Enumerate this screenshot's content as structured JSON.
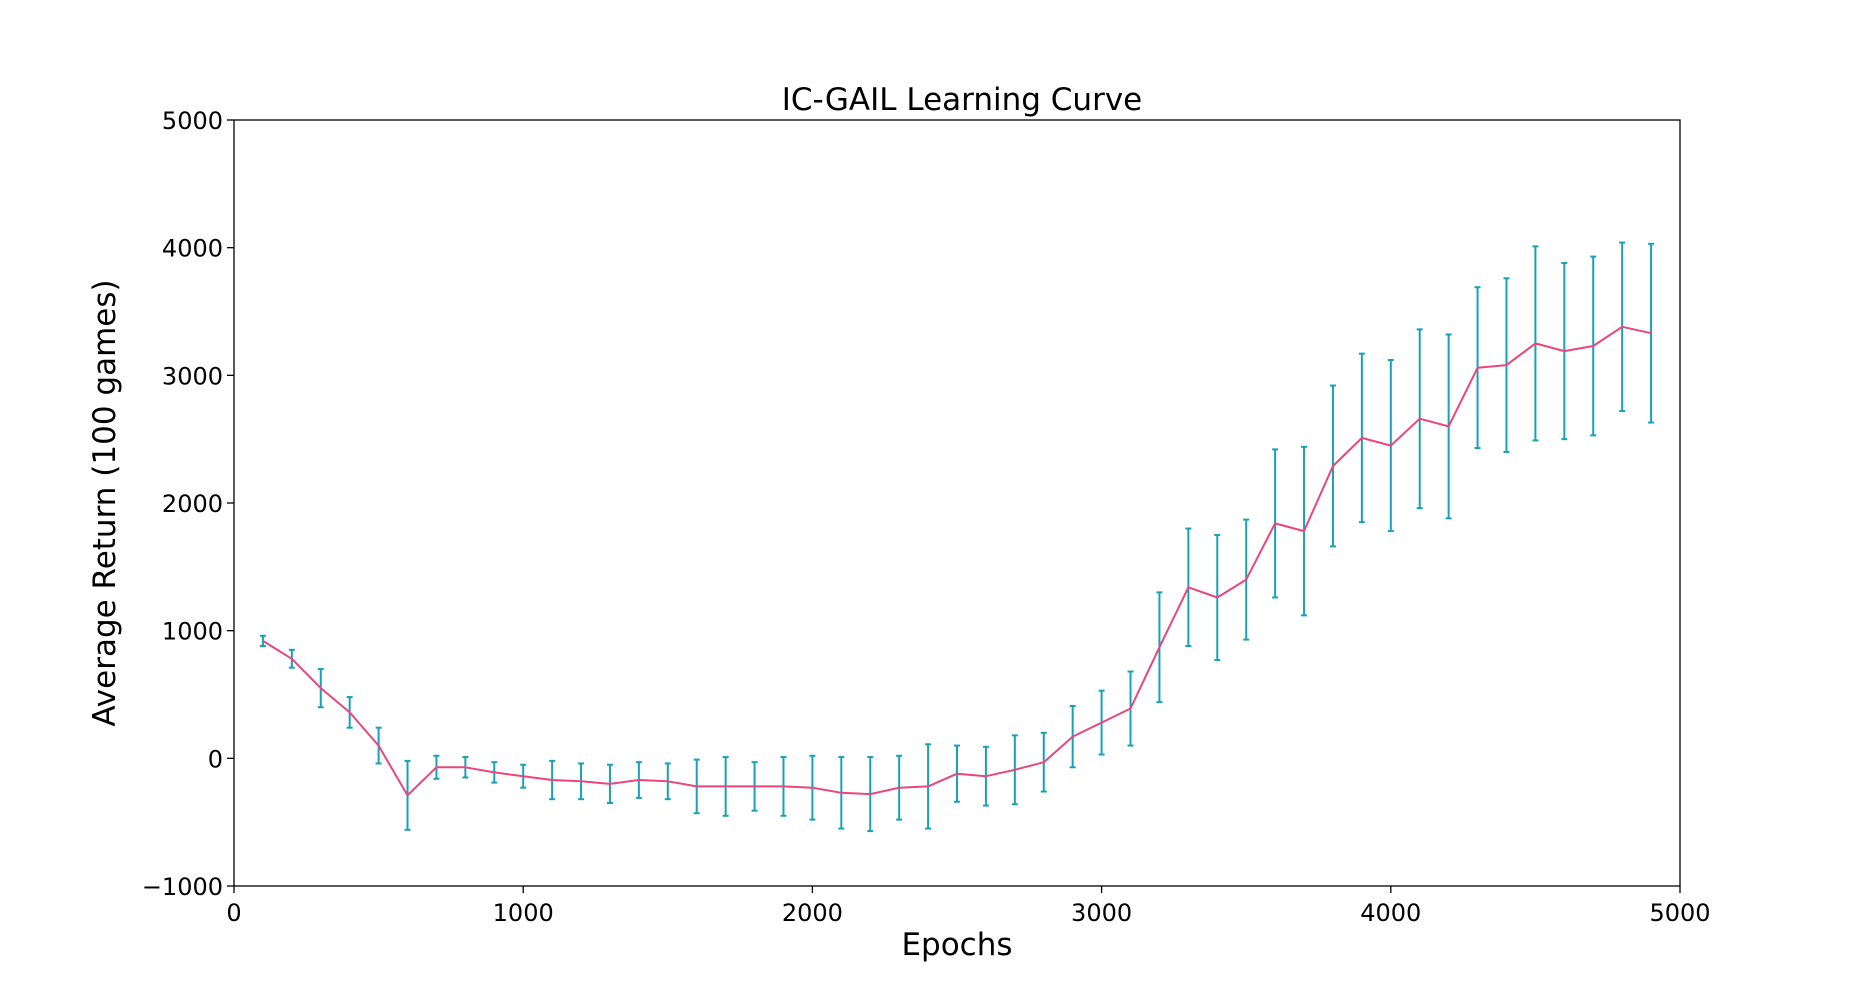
{
  "chart_data": {
    "type": "line",
    "title": "IC-GAIL Learning Curve",
    "xlabel": "Epochs",
    "ylabel": "Average Return (100 games)",
    "xlim": [
      0,
      5000
    ],
    "ylim": [
      -1000,
      5000
    ],
    "xticks": [
      0,
      1000,
      2000,
      3000,
      4000,
      5000
    ],
    "xtick_labels": [
      "0",
      "1000",
      "2000",
      "3000",
      "4000",
      "5000"
    ],
    "yticks": [
      -1000,
      0,
      1000,
      2000,
      3000,
      4000,
      5000
    ],
    "ytick_labels": [
      "−1000",
      "0",
      "1000",
      "2000",
      "3000",
      "4000",
      "5000"
    ],
    "grid": false,
    "line_color": "#e8467c",
    "errorbar_color": "#17a2b8",
    "series": [
      {
        "x": [
          100,
          200,
          300,
          400,
          500,
          600,
          700,
          800,
          900,
          1000,
          1100,
          1200,
          1300,
          1400,
          1500,
          1600,
          1700,
          1800,
          1900,
          2000,
          2100,
          2200,
          2300,
          2400,
          2500,
          2600,
          2700,
          2800,
          2900,
          3000,
          3100,
          3200,
          3300,
          3400,
          3500,
          3600,
          3700,
          3800,
          3900,
          4000,
          4100,
          4200,
          4300,
          4400,
          4500,
          4600,
          4700,
          4800,
          4900
        ],
        "y": [
          920,
          780,
          550,
          360,
          100,
          -290,
          -70,
          -70,
          -110,
          -140,
          -170,
          -180,
          -200,
          -170,
          -180,
          -220,
          -220,
          -220,
          -220,
          -230,
          -270,
          -280,
          -230,
          -220,
          -120,
          -140,
          -90,
          -30,
          170,
          280,
          390,
          870,
          1340,
          1260,
          1400,
          1840,
          1780,
          2290,
          2510,
          2450,
          2660,
          2600,
          3060,
          3080,
          3250,
          3190,
          3230,
          3380,
          3330
        ],
        "error": [
          40,
          70,
          150,
          120,
          140,
          270,
          90,
          80,
          80,
          90,
          150,
          140,
          150,
          140,
          140,
          210,
          230,
          190,
          230,
          250,
          280,
          290,
          250,
          330,
          220,
          230,
          270,
          230,
          240,
          250,
          290,
          430,
          460,
          490,
          470,
          580,
          660,
          630,
          660,
          670,
          700,
          720,
          630,
          680,
          760,
          690,
          700,
          660,
          700
        ]
      }
    ]
  }
}
